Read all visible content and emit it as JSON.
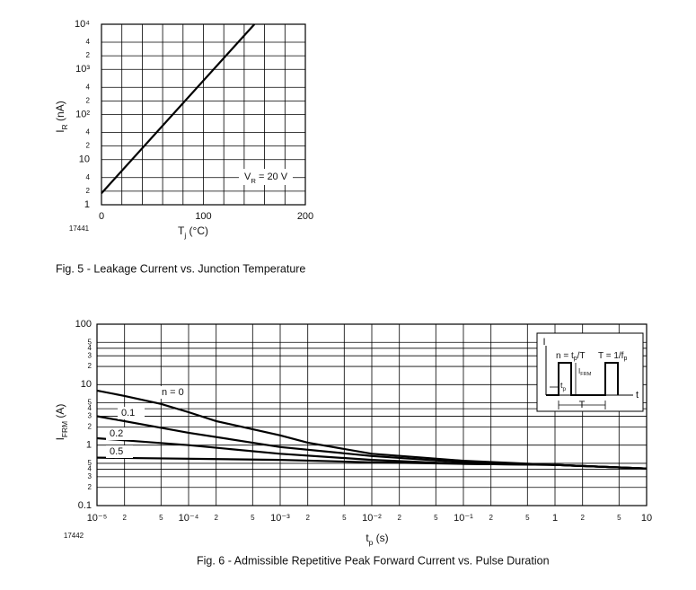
{
  "chart_data": [
    {
      "type": "line",
      "figure_id": "17441",
      "caption": "Fig. 5 - Leakage Current vs. Junction Temperature",
      "xlabel": {
        "main": "T",
        "sub": "j",
        "rest": " (°C)"
      },
      "ylabel": {
        "main": "I",
        "sub": "R",
        "rest": " (nA)"
      },
      "annotation": {
        "main": "V",
        "sub": "R",
        "rest": " = 20 V"
      },
      "xlim": [
        0,
        200
      ],
      "xticks": [
        0,
        100,
        200
      ],
      "xgrid": [
        20,
        40,
        60,
        80,
        120,
        140,
        160,
        180
      ],
      "ylim": [
        1,
        10000
      ],
      "yscale": "log",
      "yticks": [
        1,
        2,
        4,
        10,
        {
          "value": 20,
          "label": "2"
        },
        {
          "value": 40,
          "label": "4"
        },
        {
          "value": 100,
          "label": "10²"
        },
        {
          "value": 200,
          "label": "2"
        },
        {
          "value": 400,
          "label": "4"
        },
        {
          "value": 1000,
          "label": "10³"
        },
        {
          "value": 2000,
          "label": "2"
        },
        {
          "value": 4000,
          "label": "4"
        },
        {
          "value": 10000,
          "label": "10⁴"
        }
      ],
      "grid": true,
      "series": [
        {
          "color": "#000000",
          "x": [
            0,
            150
          ],
          "values": [
            1.8,
            10000
          ]
        }
      ]
    },
    {
      "type": "line",
      "figure_id": "17442",
      "caption": "Fig. 6 - Admissible Repetitive Peak Forward Current vs. Pulse Duration",
      "xlabel": {
        "main": "t",
        "sub": "p",
        "rest": " (s)"
      },
      "ylabel": {
        "main": "I",
        "sub": "FRM",
        "rest": " (A)"
      },
      "xscale": "log",
      "xlim": [
        1e-05,
        10
      ],
      "xticks": [
        {
          "value": 1e-05,
          "label": "10⁻⁵"
        },
        {
          "value": 2e-05,
          "label": "2"
        },
        {
          "value": 5e-05,
          "label": "5"
        },
        {
          "value": 0.0001,
          "label": "10⁻⁴"
        },
        {
          "value": 0.0002,
          "label": "2"
        },
        {
          "value": 0.0005,
          "label": "5"
        },
        {
          "value": 0.001,
          "label": "10⁻³"
        },
        {
          "value": 0.002,
          "label": "2"
        },
        {
          "value": 0.005,
          "label": "5"
        },
        {
          "value": 0.01,
          "label": "10⁻²"
        },
        {
          "value": 0.02,
          "label": "2"
        },
        {
          "value": 0.05,
          "label": "5"
        },
        {
          "value": 0.1,
          "label": "10⁻¹"
        },
        {
          "value": 0.2,
          "label": "2"
        },
        {
          "value": 0.5,
          "label": "5"
        },
        1,
        2,
        5,
        10
      ],
      "ylim": [
        0.1,
        100
      ],
      "yscale": "log",
      "yticks": [
        0.1,
        {
          "value": 0.2,
          "label": "2"
        },
        {
          "value": 0.3,
          "label": "3"
        },
        {
          "value": 0.4,
          "label": "4"
        },
        {
          "value": 0.5,
          "label": "5"
        },
        1,
        2,
        3,
        4,
        5,
        10,
        {
          "value": 20,
          "label": "2"
        },
        {
          "value": 30,
          "label": "3"
        },
        {
          "value": 40,
          "label": "4"
        },
        {
          "value": 50,
          "label": "5"
        },
        100
      ],
      "grid": true,
      "series": [
        {
          "name": "n = 0",
          "color": "#000000",
          "x": [
            1e-05,
            2e-05,
            5e-05,
            0.0001,
            0.0002,
            0.001,
            0.002,
            0.01,
            0.1,
            1,
            10
          ],
          "values": [
            8,
            6.5,
            4.8,
            3.5,
            2.5,
            1.45,
            1.1,
            0.72,
            0.55,
            0.47,
            0.41
          ]
        },
        {
          "name": "0.1",
          "color": "#000000",
          "x": [
            1e-05,
            0.0001,
            0.001,
            0.01,
            0.1,
            1,
            10
          ],
          "values": [
            3,
            1.6,
            0.93,
            0.66,
            0.52,
            0.47,
            0.41
          ]
        },
        {
          "name": "0.2",
          "color": "#000000",
          "x": [
            1e-05,
            0.0001,
            0.001,
            0.01,
            0.1,
            1,
            10
          ],
          "values": [
            1.3,
            1,
            0.72,
            0.57,
            0.49,
            0.47,
            0.41
          ]
        },
        {
          "name": "0.5",
          "color": "#000000",
          "x": [
            1e-05,
            0.001,
            0.01,
            0.1,
            1,
            10
          ],
          "values": [
            0.62,
            0.57,
            0.52,
            0.49,
            0.47,
            0.41
          ]
        }
      ],
      "inset": {
        "axis_i": "I",
        "axis_t": "t",
        "duty": {
          "main": "n = t",
          "sub": "p",
          "rest": "/T"
        },
        "period": {
          "main": "T = 1/f",
          "sub": "p"
        },
        "peak": {
          "main": "I",
          "sub": "FRM"
        },
        "pulse": {
          "main": "t",
          "sub": "p"
        },
        "period_span": "T"
      }
    }
  ]
}
